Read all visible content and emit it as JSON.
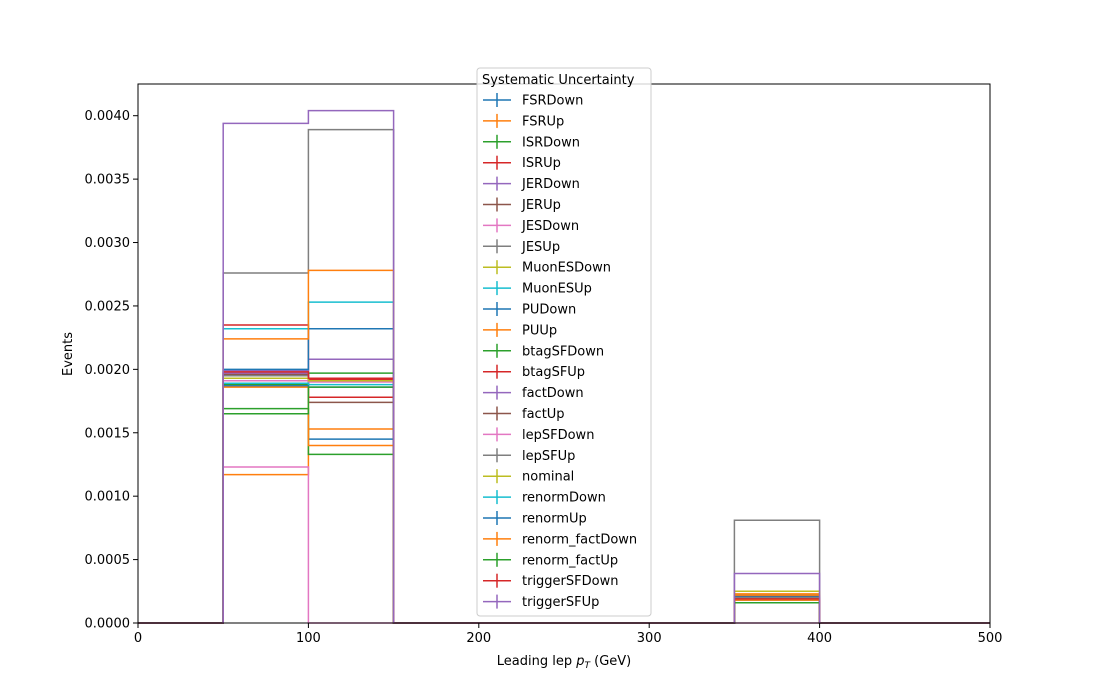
{
  "chart_data": {
    "type": "histogram",
    "title": "",
    "xlabel": "Leading lep",
    "xlabel_sub": "T",
    "xlabel_unit": " (GeV)",
    "xlabel_p": "p",
    "ylabel": "Events",
    "xlim": [
      0,
      500
    ],
    "ylim": [
      0,
      0.00425
    ],
    "xticks": [
      0,
      100,
      200,
      300,
      400,
      500
    ],
    "xtick_labels": [
      "0",
      "100",
      "200",
      "300",
      "400",
      "500"
    ],
    "yticks": [
      0,
      0.0005,
      0.001,
      0.0015,
      0.002,
      0.0025,
      0.003,
      0.0035,
      0.004
    ],
    "ytick_labels": [
      "0.0000",
      "0.0005",
      "0.0010",
      "0.0015",
      "0.0020",
      "0.0025",
      "0.0030",
      "0.0035",
      "0.0040"
    ],
    "bin_edges": [
      0,
      50,
      100,
      150,
      200,
      250,
      300,
      350,
      400,
      450,
      500
    ],
    "grid": false,
    "legend": {
      "title": "Systematic Uncertainty",
      "placement": "top-center"
    },
    "series": [
      {
        "name": "FSRDown",
        "color": "#1f77b4",
        "values": [
          0,
          0.00165,
          0.00145,
          0,
          0,
          0,
          0,
          0.00021,
          0,
          0
        ]
      },
      {
        "name": "FSRUp",
        "color": "#ff7f0e",
        "values": [
          0,
          0.00117,
          0.00153,
          0,
          0,
          0,
          0,
          0.00023,
          0,
          0
        ]
      },
      {
        "name": "ISRDown",
        "color": "#2ca02c",
        "values": [
          0,
          0.00169,
          0.00133,
          0,
          0,
          0,
          0,
          0.0002,
          0,
          0
        ]
      },
      {
        "name": "ISRUp",
        "color": "#d62728",
        "values": [
          0,
          0.00235,
          0.00178,
          0,
          0,
          0,
          0,
          0.00021,
          0,
          0
        ]
      },
      {
        "name": "JERDown",
        "color": "#9467bd",
        "values": [
          0,
          0.00199,
          0.00208,
          0,
          0,
          0,
          0,
          0.00021,
          0,
          0
        ]
      },
      {
        "name": "JERUp",
        "color": "#8c564b",
        "values": [
          0,
          0.00196,
          0.00174,
          0,
          0,
          0,
          0,
          0.0002,
          0,
          0
        ]
      },
      {
        "name": "JESDown",
        "color": "#e377c2",
        "values": [
          0,
          0.00123,
          0,
          0,
          0,
          0,
          0,
          0,
          0,
          0
        ]
      },
      {
        "name": "JESUp",
        "color": "#7f7f7f",
        "values": [
          0,
          0.00276,
          0.00389,
          0,
          0,
          0,
          0,
          0.00081,
          0,
          0
        ]
      },
      {
        "name": "MuonESDown",
        "color": "#bcbd22",
        "values": [
          0,
          0.00195,
          0.00192,
          0,
          0,
          0,
          0,
          0.00025,
          0,
          0
        ]
      },
      {
        "name": "MuonESUp",
        "color": "#17becf",
        "values": [
          0,
          0.00232,
          0.00253,
          0,
          0,
          0,
          0,
          0.00022,
          0,
          0
        ]
      },
      {
        "name": "PUDown",
        "color": "#1f77b4",
        "values": [
          0,
          0.002,
          0.00232,
          0,
          0,
          0,
          0,
          0.00021,
          0,
          0
        ]
      },
      {
        "name": "PUUp",
        "color": "#ff7f0e",
        "values": [
          0,
          0.00224,
          0.00278,
          0,
          0,
          0,
          0,
          0.00022,
          0,
          0
        ]
      },
      {
        "name": "btagSFDown",
        "color": "#2ca02c",
        "values": [
          0,
          0.00188,
          0.00197,
          0,
          0,
          0,
          0,
          0.00019,
          0,
          0
        ]
      },
      {
        "name": "btagSFUp",
        "color": "#d62728",
        "values": [
          0,
          0.00197,
          0.00192,
          0,
          0,
          0,
          0,
          0.0002,
          0,
          0
        ]
      },
      {
        "name": "factDown",
        "color": "#9467bd",
        "values": [
          0,
          0.00197,
          0.00193,
          0,
          0,
          0,
          0,
          0.00019,
          0,
          0
        ]
      },
      {
        "name": "factUp",
        "color": "#8c564b",
        "values": [
          0,
          0.00193,
          0.00191,
          0,
          0,
          0,
          0,
          0.0002,
          0,
          0
        ]
      },
      {
        "name": "lepSFDown",
        "color": "#e377c2",
        "values": [
          0,
          0.00191,
          0.0019,
          0,
          0,
          0,
          0,
          0.00019,
          0,
          0
        ]
      },
      {
        "name": "lepSFUp",
        "color": "#7f7f7f",
        "values": [
          0,
          0.00195,
          0.00193,
          0,
          0,
          0,
          0,
          0.0002,
          0,
          0
        ]
      },
      {
        "name": "nominal",
        "color": "#bcbd22",
        "values": [
          0,
          0.00193,
          0.00191,
          0,
          0,
          0,
          0,
          0.00019,
          0,
          0
        ]
      },
      {
        "name": "renormDown",
        "color": "#17becf",
        "values": [
          0,
          0.00189,
          0.00188,
          0,
          0,
          0,
          0,
          0.00019,
          0,
          0
        ]
      },
      {
        "name": "renormUp",
        "color": "#1f77b4",
        "values": [
          0,
          0.00187,
          0.00186,
          0,
          0,
          0,
          0,
          0.00018,
          0,
          0
        ]
      },
      {
        "name": "renorm_factDown",
        "color": "#ff7f0e",
        "values": [
          0,
          0.00186,
          0.0014,
          0,
          0,
          0,
          0,
          0.00018,
          0,
          0
        ]
      },
      {
        "name": "renorm_factUp",
        "color": "#2ca02c",
        "values": [
          0,
          0.00165,
          0.00186,
          0,
          0,
          0,
          0,
          0.00016,
          0,
          0
        ]
      },
      {
        "name": "triggerSFDown",
        "color": "#d62728",
        "values": [
          0,
          0.00198,
          0.00193,
          0,
          0,
          0,
          0,
          0.00019,
          0,
          0
        ]
      },
      {
        "name": "triggerSFUp",
        "color": "#9467bd",
        "values": [
          0,
          0.00394,
          0.00404,
          0,
          0,
          0,
          0,
          0.00039,
          0,
          0
        ]
      }
    ]
  }
}
